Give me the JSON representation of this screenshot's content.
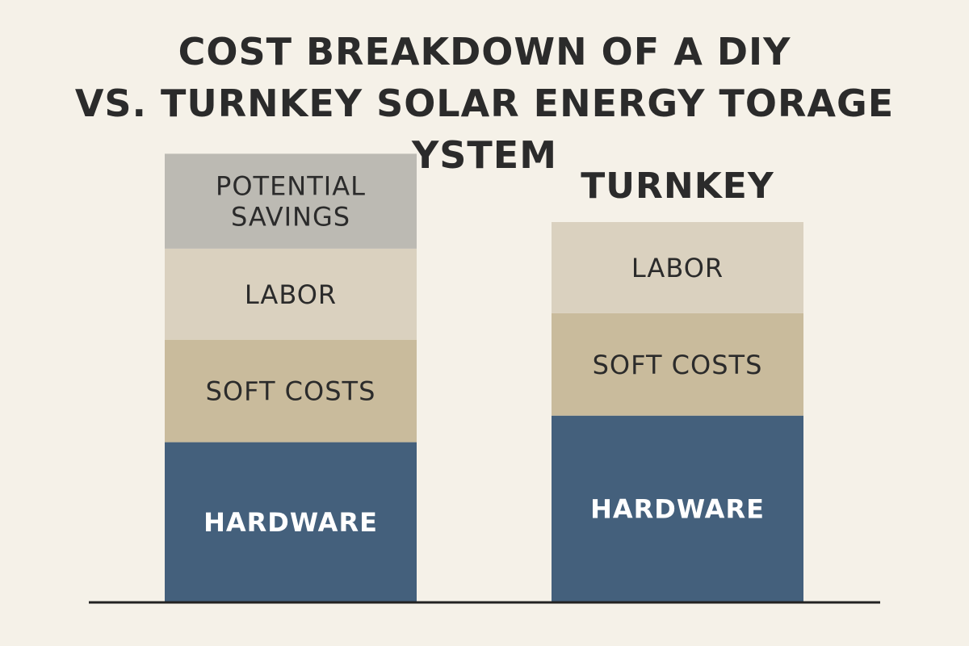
{
  "chart_data": {
    "type": "bar",
    "stacked": true,
    "title_lines": [
      "COST BREAKDOWN OF A DIY",
      "VS. TURNKEY SOLAR ENERGY TORAGE YSTEM"
    ],
    "categories": [
      "",
      "TURNKEY"
    ],
    "series": [
      {
        "name": "HARDWARE",
        "values": [
          42,
          49
        ],
        "color": "#44607c",
        "text_color": "#ffffff"
      },
      {
        "name": "SOFT COSTS",
        "values": [
          27,
          27
        ],
        "color": "#c9bb9c",
        "text_color": "#2b2b2b"
      },
      {
        "name": "LABOR",
        "values": [
          24,
          24
        ],
        "color": "#dad1bf",
        "text_color": "#2b2b2b"
      },
      {
        "name": "POTENTIAL SAVINGS",
        "values": [
          25,
          0
        ],
        "color": "#bcbab3",
        "text_color": "#2b2b2b"
      }
    ],
    "axes_shown": false,
    "grid": false,
    "legend": "none"
  }
}
